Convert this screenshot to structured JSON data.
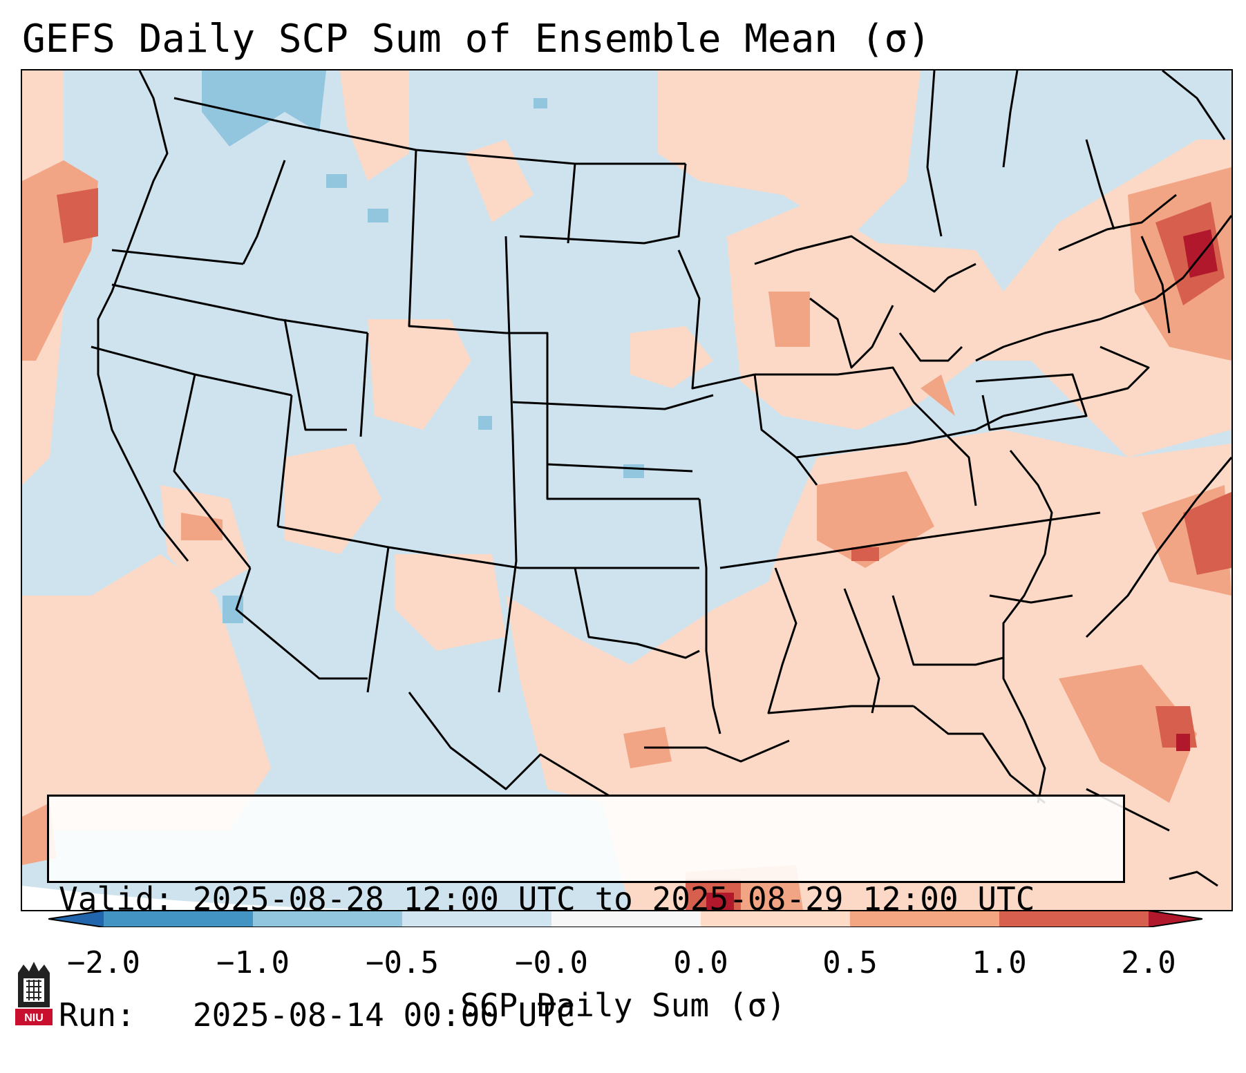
{
  "title": "GEFS Daily SCP Sum of Ensemble Mean (σ)",
  "info": {
    "valid_label": "Valid:",
    "valid_value": "2025-08-28 12:00 UTC to 2025-08-29 12:00 UTC",
    "run_label": "Run:",
    "run_value": "2025-08-14 00:00 UTC"
  },
  "colorbar": {
    "label": "SCP Daily Sum (σ)",
    "ticks": [
      "−2.0",
      "−1.0",
      "−0.5",
      "−0.0",
      "0.0",
      "0.5",
      "1.0",
      "2.0"
    ],
    "colors": [
      "#4393c3",
      "#92c5de",
      "#d1e5f0",
      "#f7f7f7",
      "#fddbc7",
      "#f4a582",
      "#d6604d"
    ],
    "extend_low_color": "#2166ac",
    "extend_high_color": "#b2182b"
  },
  "logo": {
    "text": "NIU",
    "color": "#c8102e"
  },
  "map": {
    "background_color": "#cfe3ee",
    "positive_color": "#fbd9c6",
    "moderate_color": "#f2a584",
    "strong_color": "#d6604d",
    "extreme_color": "#b2182b",
    "negative_color": "#92c5de"
  }
}
